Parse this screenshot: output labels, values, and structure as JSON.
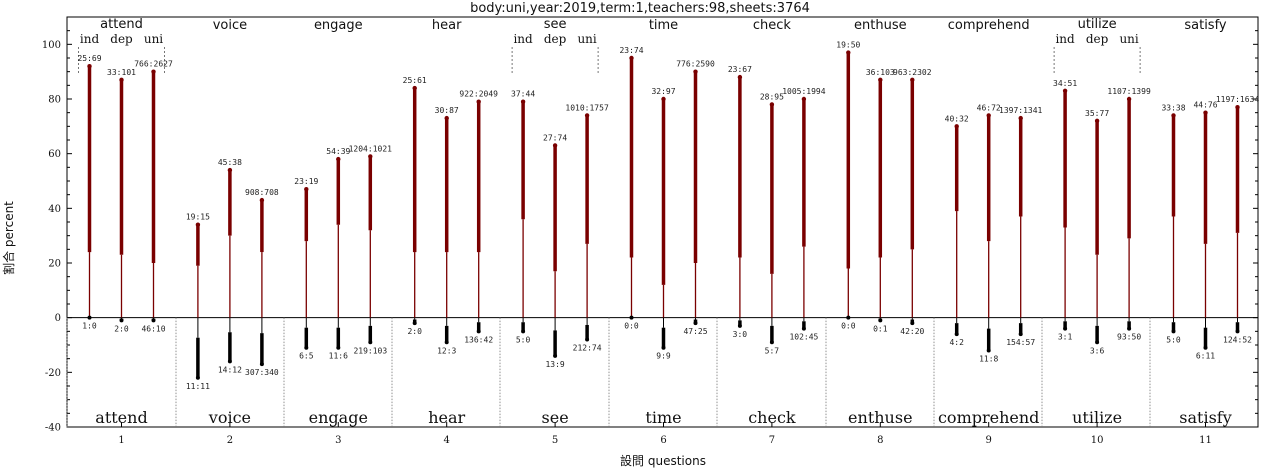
{
  "chart_data": {
    "type": "bar",
    "title": "body:uni,year:2019,term:1,teachers:98,sheets:3764",
    "xlabel": "設問 questions",
    "ylabel": "割合 percent",
    "ylim": [
      -40,
      110
    ],
    "yticks": [
      -40,
      -20,
      0,
      20,
      40,
      60,
      80,
      100
    ],
    "groups": [
      "ind",
      "dep",
      "uni"
    ],
    "questions": [
      {
        "num": "1",
        "name": "attend",
        "bars": [
          {
            "pos": 92,
            "mid": 24,
            "neg": 0,
            "top_label": "25:69",
            "bottom_label": "1:0"
          },
          {
            "pos": 87,
            "mid": 23,
            "neg": -1,
            "top_label": "33:101",
            "bottom_label": "2:0"
          },
          {
            "pos": 90,
            "mid": 20,
            "neg": -1,
            "top_label": "766:2627",
            "bottom_label": "46:10"
          }
        ]
      },
      {
        "num": "2",
        "name": "voice",
        "bars": [
          {
            "pos": 34,
            "mid": 19,
            "neg": -22,
            "top_label": "19:15",
            "bottom_label": "11:11"
          },
          {
            "pos": 54,
            "mid": 30,
            "neg": -16,
            "top_label": "45:38",
            "bottom_label": "14:12"
          },
          {
            "pos": 43,
            "mid": 24,
            "neg": -17,
            "top_label": "908:708",
            "bottom_label": "307:340"
          }
        ]
      },
      {
        "num": "3",
        "name": "engage",
        "bars": [
          {
            "pos": 47,
            "mid": 28,
            "neg": -11,
            "top_label": "23:19",
            "bottom_label": "6:5"
          },
          {
            "pos": 58,
            "mid": 34,
            "neg": -11,
            "top_label": "54:39",
            "bottom_label": "11:6"
          },
          {
            "pos": 59,
            "mid": 32,
            "neg": -9,
            "top_label": "1204:1021",
            "bottom_label": "219:103"
          }
        ]
      },
      {
        "num": "4",
        "name": "hear",
        "bars": [
          {
            "pos": 84,
            "mid": 24,
            "neg": -2,
            "top_label": "25:61",
            "bottom_label": "2:0"
          },
          {
            "pos": 73,
            "mid": 24,
            "neg": -9,
            "top_label": "30:87",
            "bottom_label": "12:3"
          },
          {
            "pos": 79,
            "mid": 24,
            "neg": -5,
            "top_label": "922:2049",
            "bottom_label": "136:42"
          }
        ]
      },
      {
        "num": "5",
        "name": "see",
        "bars": [
          {
            "pos": 79,
            "mid": 36,
            "neg": -5,
            "top_label": "37:44",
            "bottom_label": "5:0"
          },
          {
            "pos": 63,
            "mid": 17,
            "neg": -14,
            "top_label": "27:74",
            "bottom_label": "13:9"
          },
          {
            "pos": 74,
            "mid": 27,
            "neg": -8,
            "top_label": "1010:1757",
            "bottom_label": "212:74"
          }
        ]
      },
      {
        "num": "6",
        "name": "time",
        "bars": [
          {
            "pos": 95,
            "mid": 22,
            "neg": 0,
            "top_label": "23:74",
            "bottom_label": "0:0"
          },
          {
            "pos": 80,
            "mid": 12,
            "neg": -11,
            "top_label": "32:97",
            "bottom_label": "9:9"
          },
          {
            "pos": 90,
            "mid": 20,
            "neg": -2,
            "top_label": "776:2590",
            "bottom_label": "47:25"
          }
        ]
      },
      {
        "num": "7",
        "name": "check",
        "bars": [
          {
            "pos": 88,
            "mid": 22,
            "neg": -3,
            "top_label": "23:67",
            "bottom_label": "3:0"
          },
          {
            "pos": 78,
            "mid": 16,
            "neg": -9,
            "top_label": "28:95",
            "bottom_label": "5:7"
          },
          {
            "pos": 80,
            "mid": 26,
            "neg": -4,
            "top_label": "1005:1994",
            "bottom_label": "102:45"
          }
        ]
      },
      {
        "num": "8",
        "name": "enthuse",
        "bars": [
          {
            "pos": 97,
            "mid": 18,
            "neg": 0,
            "top_label": "19:50",
            "bottom_label": "0:0"
          },
          {
            "pos": 87,
            "mid": 22,
            "neg": -1,
            "top_label": "36:103",
            "bottom_label": "0:1"
          },
          {
            "pos": 87,
            "mid": 25,
            "neg": -2,
            "top_label": "963:2302",
            "bottom_label": "42:20"
          }
        ]
      },
      {
        "num": "9",
        "name": "comprehend",
        "bars": [
          {
            "pos": 70,
            "mid": 39,
            "neg": -6,
            "top_label": "40:32",
            "bottom_label": "4:2"
          },
          {
            "pos": 74,
            "mid": 28,
            "neg": -12,
            "top_label": "46:72",
            "bottom_label": "11:8"
          },
          {
            "pos": 73,
            "mid": 37,
            "neg": -6,
            "top_label": "1397:1341",
            "bottom_label": "154:57"
          }
        ]
      },
      {
        "num": "10",
        "name": "utilize",
        "bars": [
          {
            "pos": 83,
            "mid": 33,
            "neg": -4,
            "top_label": "34:51",
            "bottom_label": "3:1"
          },
          {
            "pos": 72,
            "mid": 23,
            "neg": -9,
            "top_label": "35:77",
            "bottom_label": "3:6"
          },
          {
            "pos": 80,
            "mid": 29,
            "neg": -4,
            "top_label": "1107:1399",
            "bottom_label": "93:50"
          }
        ]
      },
      {
        "num": "11",
        "name": "satisfy",
        "bars": [
          {
            "pos": 74,
            "mid": 37,
            "neg": -5,
            "top_label": "33:38",
            "bottom_label": "5:0"
          },
          {
            "pos": 75,
            "mid": 27,
            "neg": -11,
            "top_label": "44:76",
            "bottom_label": "6:11"
          },
          {
            "pos": 77,
            "mid": 31,
            "neg": -5,
            "top_label": "1197:1634",
            "bottom_label": "124:52"
          }
        ]
      }
    ],
    "legend_groups_at": [
      "1",
      "5",
      "10"
    ],
    "colors": {
      "positive": "#7a0000",
      "negative": "#000000",
      "axis": "#000000",
      "separator": "#777777"
    }
  }
}
